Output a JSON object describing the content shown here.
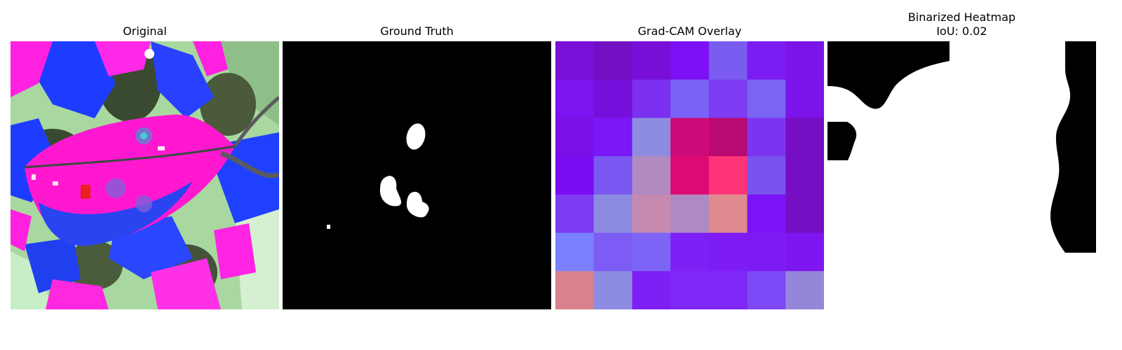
{
  "panels": {
    "original": {
      "title": "Original",
      "image": "leaf-photo-false-color"
    },
    "ground_truth": {
      "title": "Ground Truth",
      "image": "binary-mask-lesions"
    },
    "gradcam": {
      "title": "Grad-CAM Overlay",
      "image": "gradcam-7x7-heatmap-overlay",
      "grid_rows": 7,
      "grid_cols": 7,
      "cell_colors": [
        [
          "#7a0fd8",
          "#7410c4",
          "#780ed8",
          "#7d10f4",
          "#7a5cf0",
          "#7a1cf2",
          "#7a14e8"
        ],
        [
          "#7a14f0",
          "#7510dc",
          "#7a30ee",
          "#7a62f6",
          "#7d3cf2",
          "#7a64f2",
          "#7a14ea"
        ],
        [
          "#7a10e6",
          "#7a18f6",
          "#8e8ce0",
          "#cc0a78",
          "#b80a70",
          "#7d34f0",
          "#760ec4"
        ],
        [
          "#7a0cf2",
          "#7a58f2",
          "#b08ac0",
          "#de0a74",
          "#ff3478",
          "#7a52f0",
          "#760ec4"
        ],
        [
          "#7d3cf2",
          "#8e8ce2",
          "#c68ab0",
          "#ae8ac2",
          "#de8a8e",
          "#7a14f6",
          "#760ec4"
        ],
        [
          "#7a80ff",
          "#7d5cf6",
          "#7d64f6",
          "#7d20f6",
          "#7d1cf6",
          "#7d1cf2",
          "#7d16f0"
        ],
        [
          "#d8828e",
          "#8e8ce2",
          "#7d20f6",
          "#7d28f6",
          "#7d28f6",
          "#7d48f6",
          "#9486d8"
        ]
      ]
    },
    "binarized": {
      "title": "Binarized Heatmap",
      "subtitle": "IoU: 0.02",
      "image": "binary-heatmap-mask"
    }
  }
}
